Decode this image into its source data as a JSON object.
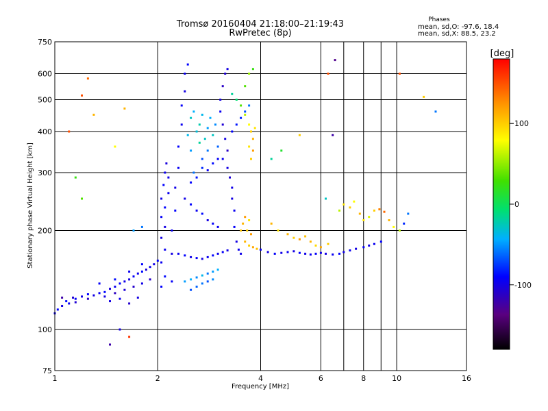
{
  "chart_data": {
    "type": "scatter",
    "title": "Tromsø 20160404 21:18:00–21:19:43",
    "subtitle": "RwPretec (8p)",
    "xlabel": "Frequency [MHz]",
    "ylabel": "Stationary phase Virtual Height [km]",
    "x_scale": "log",
    "y_scale": "log",
    "xlim": [
      1,
      16
    ],
    "ylim": [
      75,
      750
    ],
    "x_ticks": [
      1,
      2,
      4,
      6,
      8,
      10,
      16
    ],
    "x_tick_labels": [
      "1",
      "2",
      "4",
      "6",
      "8",
      "10",
      "16"
    ],
    "x_grid": [
      1,
      2,
      4,
      6,
      7,
      8,
      9,
      10,
      16
    ],
    "y_ticks": [
      75,
      100,
      200,
      300,
      400,
      500,
      600,
      750
    ],
    "y_tick_labels": [
      "75",
      "100",
      "200",
      "300",
      "400",
      "500",
      "600",
      "750"
    ],
    "y_grid": [
      100,
      200,
      300,
      400,
      500,
      600
    ],
    "grid": true,
    "legend": {
      "title": "Phases",
      "lines": [
        "mean, sd,O: -97.6, 18.4",
        "mean, sd,X:  88.5, 23.2"
      ]
    },
    "colorbar": {
      "label": "[deg]",
      "range": [
        -180,
        180
      ],
      "ticks": [
        100,
        0,
        -100
      ],
      "tick_labels": [
        "100",
        "0",
        "-100"
      ]
    },
    "series": [
      {
        "values": [
          [
            1.0,
            112,
            -95
          ],
          [
            1.02,
            115,
            -90
          ],
          [
            1.05,
            118,
            -100
          ],
          [
            1.08,
            122,
            -88
          ],
          [
            1.1,
            120,
            -95
          ],
          [
            1.13,
            125,
            -105
          ],
          [
            1.15,
            124,
            -92
          ],
          [
            1.2,
            126,
            -98
          ],
          [
            1.25,
            128,
            -90
          ],
          [
            1.3,
            127,
            -100
          ],
          [
            1.35,
            129,
            -94
          ],
          [
            1.4,
            130,
            -88
          ],
          [
            1.45,
            133,
            -102
          ],
          [
            1.5,
            135,
            -95
          ],
          [
            1.55,
            138,
            -90
          ],
          [
            1.6,
            140,
            -98
          ],
          [
            1.65,
            142,
            -100
          ],
          [
            1.7,
            145,
            -92
          ],
          [
            1.75,
            148,
            -96
          ],
          [
            1.8,
            150,
            -88
          ],
          [
            1.85,
            152,
            -104
          ],
          [
            1.9,
            155,
            -95
          ],
          [
            1.95,
            158,
            -98
          ],
          [
            2.0,
            162,
            -90
          ],
          [
            1.15,
            121,
            -105
          ],
          [
            1.25,
            124,
            -110
          ],
          [
            1.4,
            126,
            -100
          ],
          [
            1.5,
            129,
            -112
          ],
          [
            1.6,
            132,
            -104
          ],
          [
            1.7,
            135,
            -108
          ],
          [
            1.8,
            138,
            -98
          ],
          [
            1.9,
            142,
            -110
          ],
          [
            1.35,
            138,
            -92
          ],
          [
            1.5,
            142,
            -88
          ],
          [
            1.65,
            150,
            -95
          ],
          [
            1.8,
            158,
            -90
          ],
          [
            1.45,
            122,
            -100
          ],
          [
            1.55,
            124,
            -95
          ],
          [
            1.65,
            120,
            -108
          ],
          [
            1.75,
            125,
            -100
          ],
          [
            2.05,
            135,
            -90
          ],
          [
            2.05,
            160,
            -95
          ],
          [
            2.05,
            190,
            -100
          ],
          [
            2.05,
            220,
            -92
          ],
          [
            2.05,
            250,
            -98
          ],
          [
            2.08,
            275,
            -90
          ],
          [
            2.1,
            300,
            -95
          ],
          [
            2.12,
            320,
            -102
          ],
          [
            2.1,
            145,
            -88
          ],
          [
            2.1,
            175,
            -95
          ],
          [
            2.1,
            205,
            -100
          ],
          [
            2.1,
            235,
            -90
          ],
          [
            2.15,
            260,
            -95
          ],
          [
            2.15,
            290,
            -98
          ],
          [
            2.2,
            140,
            -92
          ],
          [
            2.2,
            170,
            -100
          ],
          [
            2.2,
            200,
            -95
          ],
          [
            2.25,
            230,
            -90
          ],
          [
            2.25,
            270,
            -98
          ],
          [
            2.3,
            310,
            -94
          ],
          [
            2.3,
            360,
            -90
          ],
          [
            2.35,
            420,
            -95
          ],
          [
            2.35,
            480,
            -92
          ],
          [
            2.4,
            530,
            -100
          ],
          [
            2.4,
            600,
            -95
          ],
          [
            2.45,
            640,
            -90
          ],
          [
            2.45,
            390,
            -40
          ],
          [
            2.5,
            440,
            -30
          ],
          [
            2.5,
            350,
            -50
          ],
          [
            2.55,
            300,
            -60
          ],
          [
            2.55,
            460,
            -45
          ],
          [
            2.6,
            400,
            -35
          ],
          [
            2.65,
            370,
            -20
          ],
          [
            2.65,
            420,
            -25
          ],
          [
            2.7,
            330,
            -70
          ],
          [
            2.7,
            450,
            -40
          ],
          [
            2.75,
            380,
            -30
          ],
          [
            2.8,
            410,
            -50
          ],
          [
            2.8,
            350,
            -60
          ],
          [
            2.85,
            440,
            -45
          ],
          [
            2.9,
            390,
            -30
          ],
          [
            2.95,
            420,
            -55
          ],
          [
            3.0,
            360,
            -65
          ],
          [
            2.5,
            280,
            -90
          ],
          [
            2.6,
            290,
            -85
          ],
          [
            2.7,
            310,
            -80
          ],
          [
            2.8,
            305,
            -95
          ],
          [
            2.9,
            320,
            -88
          ],
          [
            3.0,
            330,
            -92
          ],
          [
            2.4,
            250,
            -98
          ],
          [
            2.5,
            240,
            -90
          ],
          [
            2.6,
            230,
            -95
          ],
          [
            2.7,
            225,
            -88
          ],
          [
            2.8,
            215,
            -100
          ],
          [
            2.9,
            210,
            -92
          ],
          [
            3.0,
            205,
            -95
          ],
          [
            2.3,
            170,
            -95
          ],
          [
            2.4,
            168,
            -90
          ],
          [
            2.5,
            166,
            -98
          ],
          [
            2.6,
            165,
            -92
          ],
          [
            2.7,
            164,
            -100
          ],
          [
            2.8,
            166,
            -95
          ],
          [
            2.9,
            168,
            -90
          ],
          [
            3.0,
            170,
            -96
          ],
          [
            3.1,
            172,
            -92
          ],
          [
            3.2,
            174,
            -98
          ],
          [
            2.4,
            140,
            -50
          ],
          [
            2.5,
            142,
            -45
          ],
          [
            2.6,
            144,
            -55
          ],
          [
            2.7,
            146,
            -40
          ],
          [
            2.8,
            148,
            -60
          ],
          [
            2.9,
            150,
            -50
          ],
          [
            3.0,
            152,
            -45
          ],
          [
            2.5,
            132,
            -70
          ],
          [
            2.6,
            135,
            -65
          ],
          [
            2.7,
            138,
            -60
          ],
          [
            2.8,
            140,
            -70
          ],
          [
            2.9,
            142,
            -55
          ],
          [
            3.05,
            500,
            -100
          ],
          [
            3.1,
            550,
            -110
          ],
          [
            3.15,
            600,
            -105
          ],
          [
            3.2,
            620,
            -100
          ],
          [
            3.05,
            460,
            -95
          ],
          [
            3.1,
            420,
            -105
          ],
          [
            3.15,
            380,
            -100
          ],
          [
            3.2,
            350,
            -110
          ],
          [
            3.1,
            330,
            -95
          ],
          [
            3.2,
            310,
            -100
          ],
          [
            3.25,
            290,
            -105
          ],
          [
            3.3,
            270,
            -98
          ],
          [
            3.3,
            250,
            -100
          ],
          [
            3.35,
            230,
            -95
          ],
          [
            3.35,
            205,
            -92
          ],
          [
            3.4,
            185,
            -100
          ],
          [
            3.45,
            175,
            -95
          ],
          [
            3.5,
            170,
            -98
          ],
          [
            3.3,
            400,
            -90
          ],
          [
            3.4,
            420,
            -85
          ],
          [
            3.5,
            440,
            -80
          ],
          [
            3.6,
            460,
            -70
          ],
          [
            3.7,
            480,
            -60
          ],
          [
            3.3,
            520,
            -20
          ],
          [
            3.4,
            500,
            -10
          ],
          [
            3.5,
            480,
            30
          ],
          [
            3.6,
            450,
            60
          ],
          [
            3.7,
            420,
            80
          ],
          [
            3.75,
            400,
            100
          ],
          [
            3.8,
            380,
            110
          ],
          [
            3.8,
            350,
            120
          ],
          [
            3.75,
            330,
            100
          ],
          [
            3.7,
            360,
            90
          ],
          [
            3.85,
            410,
            90
          ],
          [
            3.6,
            550,
            30
          ],
          [
            3.7,
            600,
            50
          ],
          [
            3.8,
            620,
            20
          ],
          [
            3.55,
            210,
            110
          ],
          [
            3.6,
            220,
            120
          ],
          [
            3.65,
            200,
            100
          ],
          [
            3.7,
            215,
            90
          ],
          [
            3.75,
            195,
            120
          ],
          [
            3.6,
            185,
            110
          ],
          [
            3.7,
            180,
            100
          ],
          [
            3.8,
            178,
            115
          ],
          [
            3.9,
            176,
            105
          ],
          [
            3.5,
            200,
            105
          ],
          [
            4.0,
            175,
            -95
          ],
          [
            4.2,
            172,
            -100
          ],
          [
            4.4,
            170,
            -92
          ],
          [
            4.6,
            171,
            -98
          ],
          [
            4.8,
            172,
            -95
          ],
          [
            5.0,
            173,
            -100
          ],
          [
            5.2,
            171,
            -90
          ],
          [
            5.4,
            170,
            -98
          ],
          [
            5.6,
            169,
            -95
          ],
          [
            5.8,
            170,
            -92
          ],
          [
            6.0,
            171,
            -98
          ],
          [
            6.2,
            170,
            -100
          ],
          [
            6.5,
            169,
            -95
          ],
          [
            6.8,
            170,
            -90
          ],
          [
            7.0,
            172,
            -98
          ],
          [
            7.3,
            174,
            -95
          ],
          [
            7.6,
            176,
            -100
          ],
          [
            8.0,
            178,
            -92
          ],
          [
            8.3,
            180,
            -98
          ],
          [
            8.6,
            182,
            -95
          ],
          [
            9.0,
            185,
            -90
          ],
          [
            4.8,
            195,
            110
          ],
          [
            5.0,
            190,
            100
          ],
          [
            5.2,
            188,
            120
          ],
          [
            5.4,
            192,
            105
          ],
          [
            5.6,
            185,
            110
          ],
          [
            5.8,
            180,
            95
          ],
          [
            6.0,
            178,
            115
          ],
          [
            6.3,
            182,
            100
          ],
          [
            4.5,
            200,
            90
          ],
          [
            4.3,
            210,
            110
          ],
          [
            6.8,
            230,
            60
          ],
          [
            7.0,
            240,
            90
          ],
          [
            7.3,
            235,
            100
          ],
          [
            7.5,
            245,
            80
          ],
          [
            7.8,
            225,
            110
          ],
          [
            8.0,
            215,
            90
          ],
          [
            8.3,
            220,
            70
          ],
          [
            8.6,
            230,
            100
          ],
          [
            8.9,
            232,
            130
          ],
          [
            9.2,
            228,
            140
          ],
          [
            9.5,
            215,
            110
          ],
          [
            9.8,
            205,
            80
          ],
          [
            10.2,
            200,
            60
          ],
          [
            10.5,
            210,
            -80
          ],
          [
            10.8,
            225,
            -60
          ],
          [
            1.2,
            515,
            150
          ],
          [
            1.25,
            580,
            140
          ],
          [
            1.3,
            450,
            110
          ],
          [
            1.1,
            400,
            150
          ],
          [
            1.2,
            250,
            30
          ],
          [
            1.15,
            290,
            20
          ],
          [
            1.5,
            360,
            80
          ],
          [
            1.6,
            470,
            110
          ],
          [
            1.7,
            200,
            -50
          ],
          [
            1.8,
            205,
            -60
          ],
          [
            4.3,
            330,
            -20
          ],
          [
            4.6,
            350,
            10
          ],
          [
            5.2,
            390,
            100
          ],
          [
            6.2,
            250,
            -30
          ],
          [
            6.5,
            390,
            -120
          ],
          [
            6.3,
            600,
            150
          ],
          [
            6.6,
            660,
            -130
          ],
          [
            13.0,
            460,
            -60
          ],
          [
            12.0,
            510,
            100
          ],
          [
            10.2,
            600,
            150
          ],
          [
            1.55,
            100,
            -100
          ],
          [
            1.65,
            95,
            160
          ],
          [
            1.45,
            90,
            -120
          ],
          [
            1.05,
            125,
            -120
          ]
        ]
      }
    ]
  }
}
